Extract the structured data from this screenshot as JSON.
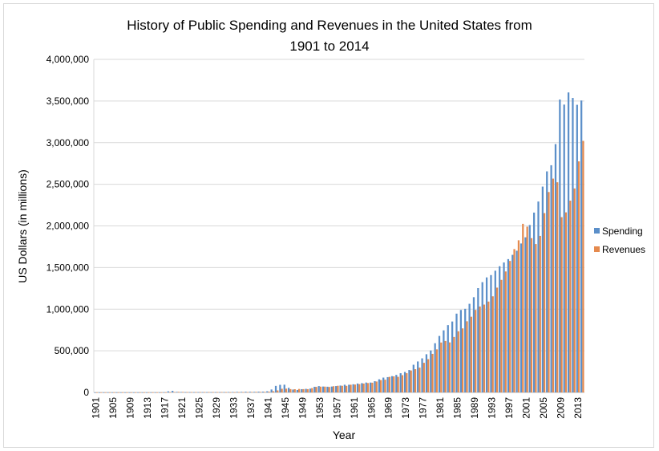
{
  "chart_data": {
    "type": "bar",
    "title_line1": "History of Public Spending and Revenues in the United States from",
    "title_line2": "1901 to 2014",
    "xlabel": "Year",
    "ylabel": "US Dollars (in millions)",
    "ylim": [
      0,
      4000000
    ],
    "yticks": [
      "0",
      "500,000",
      "1,000,000",
      "1,500,000",
      "2,000,000",
      "2,500,000",
      "3,000,000",
      "3,500,000",
      "4,000,000"
    ],
    "grid": true,
    "legend_position": "right",
    "x_start": 1901,
    "x_end": 2014,
    "x_tick_labels": [
      "1901",
      "1905",
      "1909",
      "1913",
      "1917",
      "1921",
      "1925",
      "1929",
      "1933",
      "1937",
      "1941",
      "1945",
      "1949",
      "1953",
      "1957",
      "1961",
      "1965",
      "1969",
      "1973",
      "1977",
      "1981",
      "1985",
      "1989",
      "1993",
      "1997",
      "2001",
      "2005",
      "2009",
      "2013"
    ],
    "series": [
      {
        "name": "Spending",
        "color": "#5b8fc9",
        "values": [
          525,
          485,
          517,
          584,
          567,
          570,
          579,
          659,
          694,
          694,
          691,
          690,
          715,
          726,
          746,
          713,
          1954,
          12677,
          18493,
          6358,
          5062,
          3289,
          3140,
          2905,
          2924,
          2930,
          2857,
          2961,
          3127,
          3320,
          3577,
          4659,
          4598,
          6541,
          6412,
          8228,
          7580,
          6840,
          9141,
          9468,
          13653,
          35137,
          78555,
          91304,
          92712,
          55232,
          34496,
          29764,
          38835,
          42562,
          45514,
          67686,
          76101,
          70855,
          68444,
          70640,
          76578,
          82405,
          92098,
          92191,
          97723,
          106821,
          111316,
          118528,
          118228,
          134532,
          157464,
          178134,
          183640,
          195649,
          210172,
          230681,
          245707,
          269359,
          332332,
          371792,
          409218,
          458746,
          504028,
          590941,
          678241,
          745743,
          808364,
          851805,
          946344,
          990382,
          1004017,
          1064416,
          1143743,
          1252993,
          1324226,
          1381529,
          1409386,
          1461753,
          1515742,
          1560484,
          1601116,
          1652458,
          1701842,
          1788950,
          1862846,
          2010894,
          2159899,
          2292841,
          2471957,
          2655050,
          2728686,
          2982544,
          3517677,
          3457079,
          3603059,
          3536951,
          3454647,
          3506089
        ]
      },
      {
        "name": "Revenues",
        "color": "#e58a4e",
        "values": [
          588,
          562,
          562,
          541,
          544,
          595,
          665,
          602,
          604,
          676,
          702,
          693,
          714,
          725,
          683,
          761,
          1101,
          3645,
          5130,
          6649,
          5571,
          4026,
          3853,
          3871,
          3641,
          3795,
          4013,
          3900,
          3862,
          4058,
          3116,
          1924,
          1997,
          2955,
          3609,
          3923,
          5387,
          6751,
          6295,
          6548,
          8712,
          14634,
          24001,
          43747,
          45159,
          39296,
          38514,
          41560,
          39415,
          39443,
          51616,
          66167,
          69608,
          69701,
          65451,
          74587,
          79990,
          79636,
          79249,
          92492,
          94388,
          99676,
          106560,
          112613,
          116817,
          130835,
          148822,
          152973,
          186882,
          192807,
          187139,
          207309,
          230799,
          263224,
          279090,
          298060,
          355559,
          399561,
          463302,
          517112,
          599272,
          617766,
          600562,
          666438,
          734037,
          769155,
          854287,
          909238,
          991105,
          1031958,
          1054988,
          1091208,
          1154335,
          1258566,
          1351790,
          1453053,
          1579232,
          1721728,
          1827452,
          2025191,
          1991082,
          1853136,
          1782314,
          1880114,
          2153611,
          2406869,
          2567985,
          2523991,
          2104989,
          2162706,
          2303466,
          2449988,
          2775103,
          3021487
        ]
      }
    ]
  }
}
